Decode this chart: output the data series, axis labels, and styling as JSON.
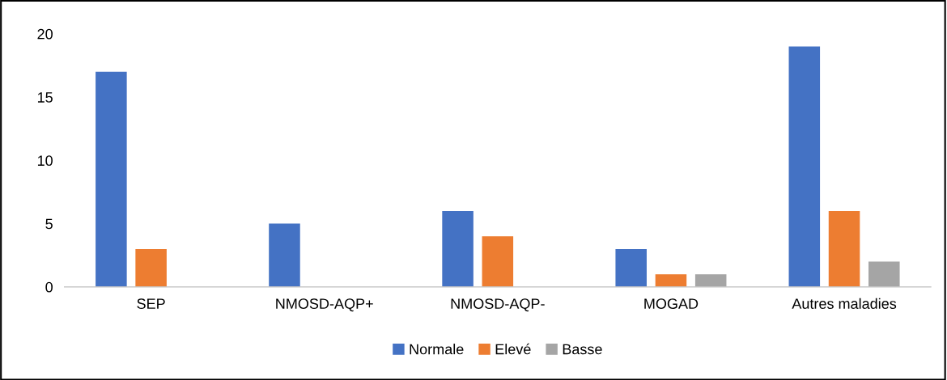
{
  "chart_data": {
    "type": "bar",
    "categories": [
      "SEP",
      "NMOSD-AQP+",
      "NMOSD-AQP-",
      "MOGAD",
      "Autres maladies"
    ],
    "series": [
      {
        "name": "Normale",
        "color": "#4472c4",
        "values": [
          17,
          5,
          6,
          3,
          19
        ]
      },
      {
        "name": "Elevé",
        "color": "#ed7d31",
        "values": [
          3,
          0,
          4,
          1,
          6
        ]
      },
      {
        "name": "Basse",
        "color": "#a5a5a5",
        "values": [
          0,
          0,
          0,
          1,
          2
        ]
      }
    ],
    "ylim": [
      0,
      20
    ],
    "yticks": [
      0,
      5,
      10,
      15,
      20
    ],
    "grid": false,
    "legend": "bottom"
  }
}
